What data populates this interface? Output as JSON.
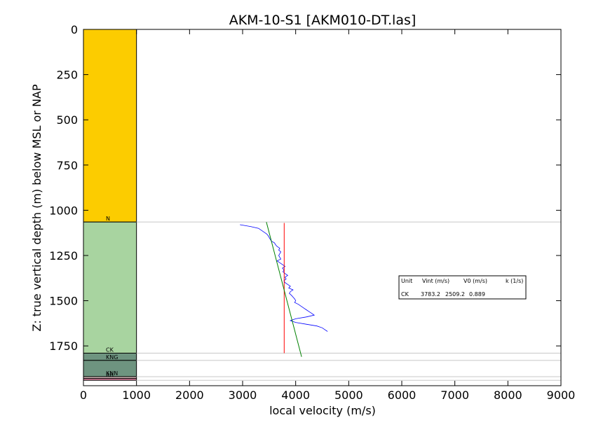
{
  "chart_data": {
    "type": "line",
    "title": "AKM-10-S1 [AKM010-DT.las]",
    "xlabel": "local velocity (m/s)",
    "ylabel": "Z: true vertical depth (m) below MSL or NAP",
    "xlim": [
      0,
      9000
    ],
    "ylim": [
      0,
      1970
    ],
    "y_inverted": true,
    "x_ticks": [
      0,
      1000,
      2000,
      3000,
      4000,
      5000,
      6000,
      7000,
      8000,
      9000
    ],
    "y_ticks": [
      0,
      250,
      500,
      750,
      1000,
      1250,
      1500,
      1750
    ],
    "grid": false,
    "layers": [
      {
        "name": "",
        "top": 0,
        "base": 1065,
        "color": "#fccc00"
      },
      {
        "name": "N",
        "top": 1065,
        "base": 1790,
        "color": "#a8d4a0"
      },
      {
        "name": "CK",
        "top": 1790,
        "base": 1830,
        "color": "#6e9480"
      },
      {
        "name": "KNG",
        "top": 1830,
        "base": 1920,
        "color": "#6e9480"
      },
      {
        "name": "KNN",
        "top": 1920,
        "base": 1930,
        "color": "#dcc0c0"
      },
      {
        "name": "RB",
        "top": 1930,
        "base": 1940,
        "color": "#e080a0"
      }
    ],
    "horizon_lines": [
      1065,
      1790,
      1830,
      1920,
      1940
    ],
    "series": [
      {
        "color": "#0000ff",
        "depth": [
          1080,
          1090,
          1100,
          1110,
          1120,
          1130,
          1140,
          1150,
          1160,
          1170,
          1180,
          1190,
          1200,
          1210,
          1220,
          1230,
          1240,
          1250,
          1260,
          1270,
          1280,
          1290,
          1300,
          1310,
          1320,
          1330,
          1340,
          1350,
          1360,
          1370,
          1380,
          1390,
          1400,
          1410,
          1420,
          1430,
          1440,
          1450,
          1460,
          1470,
          1480,
          1490,
          1500,
          1510,
          1520,
          1530,
          1540,
          1550,
          1560,
          1570,
          1580,
          1590,
          1600,
          1610,
          1620,
          1630,
          1640,
          1650,
          1660,
          1670
        ],
        "velocity": [
          2950,
          3150,
          3300,
          3350,
          3400,
          3450,
          3480,
          3500,
          3520,
          3540,
          3600,
          3620,
          3650,
          3700,
          3680,
          3720,
          3700,
          3680,
          3700,
          3720,
          3650,
          3700,
          3750,
          3800,
          3750,
          3780,
          3760,
          3800,
          3850,
          3800,
          3820,
          3780,
          3800,
          3850,
          3900,
          3870,
          3950,
          3900,
          3880,
          3920,
          3950,
          3980,
          4000,
          3980,
          4050,
          4100,
          4150,
          4200,
          4250,
          4300,
          4350,
          4200,
          4000,
          3900,
          4000,
          4200,
          4400,
          4500,
          4550,
          4600
        ]
      },
      {
        "color": "#ff0000",
        "depth": [
          1070,
          1790
        ],
        "velocity": [
          3783.2,
          3783.2
        ]
      },
      {
        "color": "#008000",
        "depth": [
          1065,
          1810
        ],
        "velocity": [
          3448,
          4111
        ]
      }
    ],
    "stats_box": {
      "header": [
        "Unit",
        "Vint (m/s)",
        "V0 (m/s)",
        "k (1/s)"
      ],
      "row": [
        "CK",
        "3783.2",
        "2509.2",
        "0.889"
      ]
    }
  }
}
